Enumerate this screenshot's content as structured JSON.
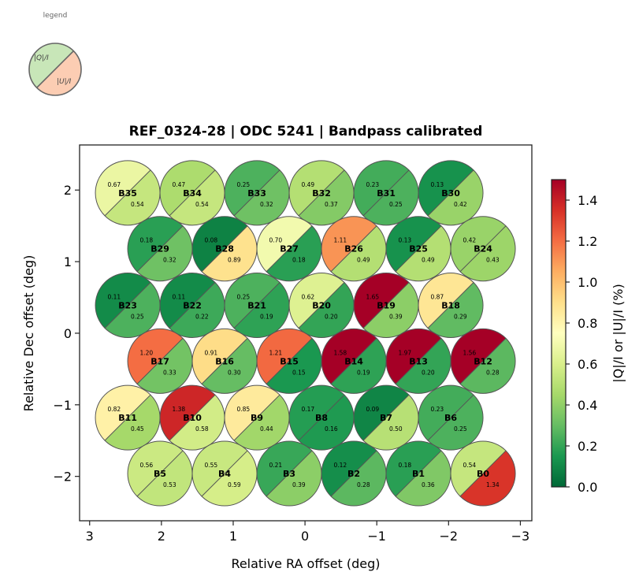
{
  "chart_data": {
    "type": "scatter",
    "subtype": "split-circle beam map",
    "title": "REF_0324-28  |  ODC 5241  |  Bandpass calibrated",
    "xlabel": "Relative RA offset (deg)",
    "ylabel": "Relative Dec offset (deg)",
    "xlim": [
      3.14,
      -3.16
    ],
    "ylim": [
      -2.62,
      2.63
    ],
    "x_ticks": [
      3,
      2,
      1,
      0,
      -1,
      -2,
      -3
    ],
    "x_tick_labels": [
      "3",
      "2",
      "1",
      "0",
      "−1",
      "−2",
      "−3"
    ],
    "y_ticks": [
      2,
      1,
      0,
      -1,
      -2
    ],
    "y_tick_labels": [
      "2",
      "1",
      "0",
      "−1",
      "−2"
    ],
    "grid": false,
    "beam_radius_deg": 0.45,
    "colorbar": {
      "label": "|Q|/I  or  |U|/I  (%)",
      "colormap": "RdYlGn_r",
      "range": [
        0.0,
        1.5
      ],
      "ticks": [
        0.0,
        0.2,
        0.4,
        0.6,
        0.8,
        1.0,
        1.2,
        1.4
      ],
      "tick_labels": [
        "0.0",
        "0.2",
        "0.4",
        "0.6",
        "0.8",
        "1.0",
        "1.2",
        "1.4"
      ],
      "placement": "right"
    },
    "legend": {
      "title": "legend",
      "upper_label": "|Q|/I",
      "lower_label": "|U|/I",
      "upper_color": "#c8e6b8",
      "lower_color": "#fccdb3",
      "placement": "top-left"
    },
    "beams": [
      {
        "name": "B35",
        "ra": 2.47,
        "dec": 1.96,
        "q": 0.67,
        "u": 0.54
      },
      {
        "name": "B34",
        "ra": 1.57,
        "dec": 1.96,
        "q": 0.47,
        "u": 0.54
      },
      {
        "name": "B33",
        "ra": 0.67,
        "dec": 1.96,
        "q": 0.25,
        "u": 0.32
      },
      {
        "name": "B32",
        "ra": -0.23,
        "dec": 1.96,
        "q": 0.49,
        "u": 0.37
      },
      {
        "name": "B31",
        "ra": -1.13,
        "dec": 1.96,
        "q": 0.23,
        "u": 0.25
      },
      {
        "name": "B30",
        "ra": -2.03,
        "dec": 1.96,
        "q": 0.13,
        "u": 0.42
      },
      {
        "name": "B29",
        "ra": 2.02,
        "dec": 1.18,
        "q": 0.18,
        "u": 0.32
      },
      {
        "name": "B28",
        "ra": 1.12,
        "dec": 1.18,
        "q": 0.08,
        "u": 0.89
      },
      {
        "name": "B27",
        "ra": 0.22,
        "dec": 1.18,
        "q": 0.7,
        "u": 0.18
      },
      {
        "name": "B26",
        "ra": -0.68,
        "dec": 1.18,
        "q": 1.11,
        "u": 0.49
      },
      {
        "name": "B25",
        "ra": -1.58,
        "dec": 1.18,
        "q": 0.13,
        "u": 0.49
      },
      {
        "name": "B24",
        "ra": -2.48,
        "dec": 1.18,
        "q": 0.42,
        "u": 0.43
      },
      {
        "name": "B23",
        "ra": 2.47,
        "dec": 0.39,
        "q": 0.11,
        "u": 0.25
      },
      {
        "name": "B22",
        "ra": 1.57,
        "dec": 0.39,
        "q": 0.11,
        "u": 0.22
      },
      {
        "name": "B21",
        "ra": 0.67,
        "dec": 0.39,
        "q": 0.25,
        "u": 0.19
      },
      {
        "name": "B20",
        "ra": -0.23,
        "dec": 0.39,
        "q": 0.62,
        "u": 0.2
      },
      {
        "name": "B19",
        "ra": -1.13,
        "dec": 0.39,
        "q": 1.65,
        "u": 0.39
      },
      {
        "name": "B18",
        "ra": -2.03,
        "dec": 0.39,
        "q": 0.87,
        "u": 0.29
      },
      {
        "name": "B17",
        "ra": 2.02,
        "dec": -0.39,
        "q": 1.2,
        "u": 0.33
      },
      {
        "name": "B16",
        "ra": 1.12,
        "dec": -0.39,
        "q": 0.91,
        "u": 0.3
      },
      {
        "name": "B15",
        "ra": 0.22,
        "dec": -0.39,
        "q": 1.21,
        "u": 0.15
      },
      {
        "name": "B14",
        "ra": -0.68,
        "dec": -0.39,
        "q": 1.58,
        "u": 0.19
      },
      {
        "name": "B13",
        "ra": -1.58,
        "dec": -0.39,
        "q": 1.97,
        "u": 0.2
      },
      {
        "name": "B12",
        "ra": -2.48,
        "dec": -0.39,
        "q": 1.56,
        "u": 0.28
      },
      {
        "name": "B11",
        "ra": 2.47,
        "dec": -1.18,
        "q": 0.82,
        "u": 0.45
      },
      {
        "name": "B10",
        "ra": 1.57,
        "dec": -1.18,
        "q": 1.38,
        "u": 0.58
      },
      {
        "name": "B9",
        "ra": 0.67,
        "dec": -1.18,
        "q": 0.85,
        "u": 0.44
      },
      {
        "name": "B8",
        "ra": -0.23,
        "dec": -1.18,
        "q": 0.17,
        "u": 0.16
      },
      {
        "name": "B7",
        "ra": -1.13,
        "dec": -1.18,
        "q": 0.09,
        "u": 0.5
      },
      {
        "name": "B6",
        "ra": -2.03,
        "dec": -1.18,
        "q": 0.23,
        "u": 0.25
      },
      {
        "name": "B5",
        "ra": 2.02,
        "dec": -1.96,
        "q": 0.56,
        "u": 0.53
      },
      {
        "name": "B4",
        "ra": 1.12,
        "dec": -1.96,
        "q": 0.55,
        "u": 0.59
      },
      {
        "name": "B3",
        "ra": 0.22,
        "dec": -1.96,
        "q": 0.21,
        "u": 0.39
      },
      {
        "name": "B2",
        "ra": -0.68,
        "dec": -1.96,
        "q": 0.12,
        "u": 0.28
      },
      {
        "name": "B1",
        "ra": -1.58,
        "dec": -1.96,
        "q": 0.18,
        "u": 0.36
      },
      {
        "name": "B0",
        "ra": -2.48,
        "dec": -1.96,
        "q": 0.54,
        "u": 1.34
      }
    ]
  }
}
